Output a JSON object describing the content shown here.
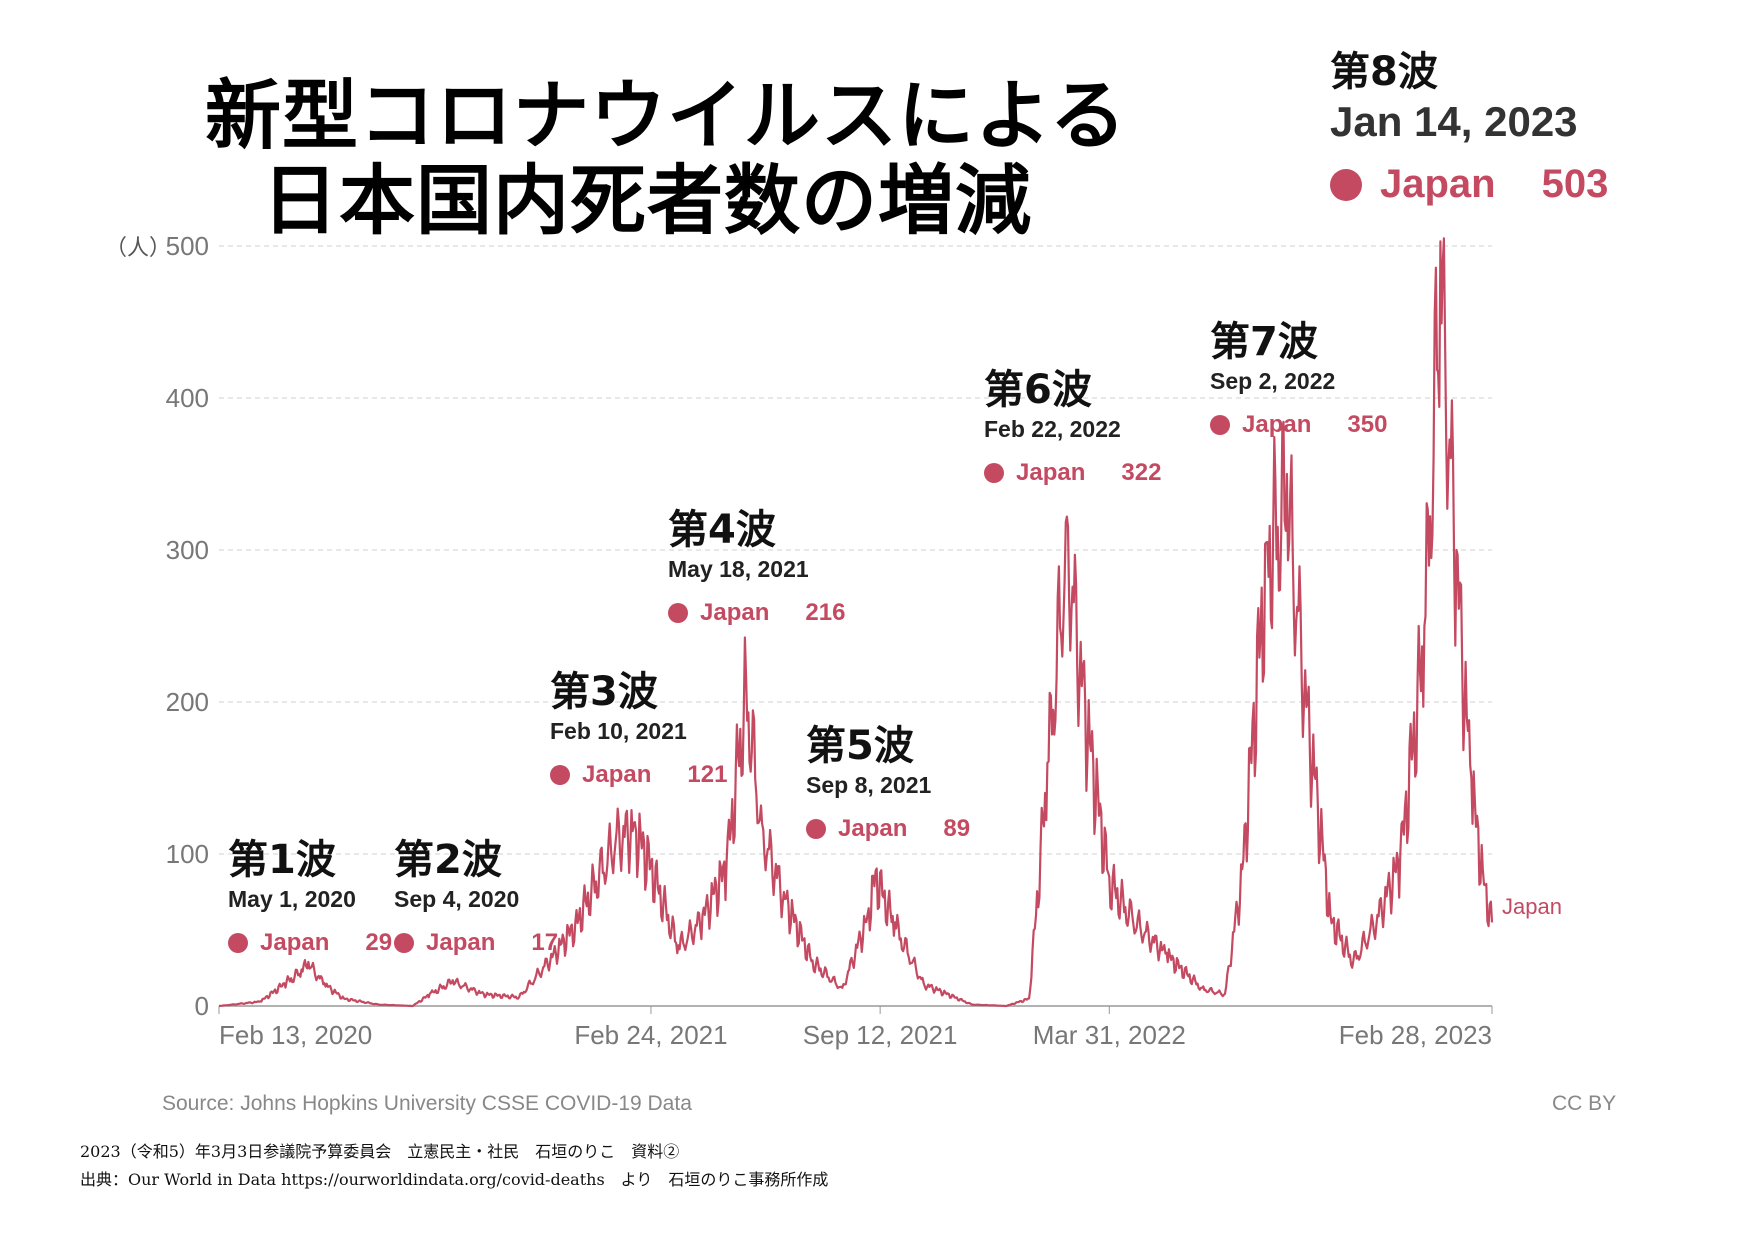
{
  "title": {
    "line1": "新型コロナウイルスによる",
    "line2": "日本国内死者数の増減"
  },
  "y_unit": "（人）",
  "waves": [
    {
      "name": "第1波",
      "date": "May 1, 2020",
      "country": "Japan",
      "value": "29"
    },
    {
      "name": "第2波",
      "date": "Sep 4, 2020",
      "country": "Japan",
      "value": "17"
    },
    {
      "name": "第3波",
      "date": "Feb 10, 2021",
      "country": "Japan",
      "value": "121"
    },
    {
      "name": "第4波",
      "date": "May 18, 2021",
      "country": "Japan",
      "value": "216"
    },
    {
      "name": "第5波",
      "date": "Sep 8, 2021",
      "country": "Japan",
      "value": "89"
    },
    {
      "name": "第6波",
      "date": "Feb 22, 2022",
      "country": "Japan",
      "value": "322"
    },
    {
      "name": "第7波",
      "date": "Sep 2, 2022",
      "country": "Japan",
      "value": "350"
    },
    {
      "name": "第8波",
      "date": "Jan 14, 2023",
      "country": "Japan",
      "value": "503"
    }
  ],
  "source": "Source: Johns Hopkins University CSSE COVID-19 Data",
  "license": "CC BY",
  "footnote1": "2023（令和5）年3月3日参議院予算委員会　立憲民主・社民　石垣のりこ　資料②",
  "footnote2": "出典：Our World in Data https://ourworldindata.org/covid-deaths　より　石垣のりこ事務所作成",
  "colors": {
    "line": "#c44a62",
    "grid": "#d9d9d9",
    "axis_text": "#777777"
  },
  "chart_data": {
    "type": "line",
    "title": "新型コロナウイルスによる日本国内死者数の増減",
    "ylabel": "（人）",
    "ylim": [
      0,
      500
    ],
    "yticks": [
      0,
      100,
      200,
      300,
      400,
      500
    ],
    "xticks": [
      "Feb 13, 2020",
      "Feb 24, 2021",
      "Sep 12, 2021",
      "Mar 31, 2022",
      "Feb 28, 2023"
    ],
    "grid": true,
    "series": [
      {
        "name": "Japan",
        "x": [
          "2020-02-13",
          "2020-03-20",
          "2020-04-10",
          "2020-04-25",
          "2020-05-01",
          "2020-05-15",
          "2020-06-01",
          "2020-07-01",
          "2020-07-31",
          "2020-08-15",
          "2020-09-04",
          "2020-10-01",
          "2020-11-01",
          "2020-12-01",
          "2020-12-20",
          "2021-01-10",
          "2021-01-25",
          "2021-02-10",
          "2021-02-24",
          "2021-03-20",
          "2021-04-10",
          "2021-05-01",
          "2021-05-18",
          "2021-06-01",
          "2021-06-20",
          "2021-07-15",
          "2021-08-10",
          "2021-09-01",
          "2021-09-08",
          "2021-09-25",
          "2021-10-20",
          "2021-12-01",
          "2021-12-31",
          "2022-01-20",
          "2022-02-05",
          "2022-02-22",
          "2022-03-10",
          "2022-03-31",
          "2022-04-20",
          "2022-05-20",
          "2022-06-20",
          "2022-07-10",
          "2022-07-25",
          "2022-08-15",
          "2022-09-02",
          "2022-09-20",
          "2022-10-10",
          "2022-10-30",
          "2022-11-20",
          "2022-12-10",
          "2022-12-31",
          "2023-01-14",
          "2023-01-28",
          "2023-02-10",
          "2023-02-20",
          "2023-02-28"
        ],
        "y": [
          0,
          3,
          15,
          24,
          29,
          15,
          5,
          1,
          0,
          8,
          17,
          8,
          6,
          35,
          55,
          90,
          115,
          121,
          95,
          40,
          60,
          95,
          216,
          120,
          75,
          30,
          12,
          60,
          89,
          55,
          15,
          1,
          0,
          5,
          160,
          322,
          200,
          85,
          60,
          35,
          12,
          8,
          90,
          305,
          350,
          200,
          60,
          30,
          60,
          100,
          250,
          503,
          300,
          150,
          90,
          55
        ]
      }
    ]
  }
}
